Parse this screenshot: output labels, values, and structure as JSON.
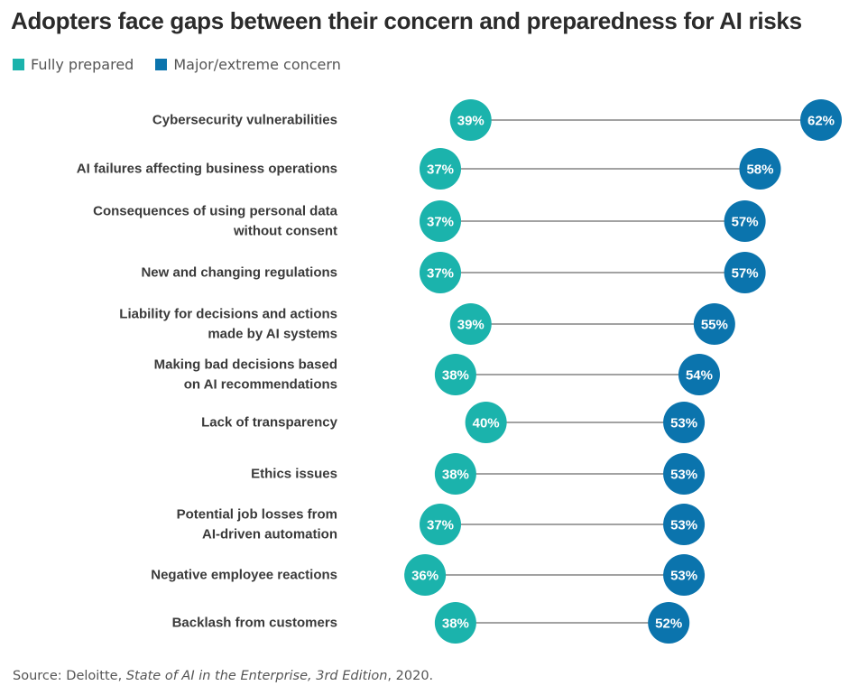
{
  "title": "Adopters face gaps between their concern and preparedness for AI risks",
  "colors": {
    "fully_prepared": "#1bb3ac",
    "major_concern": "#0b74ad",
    "line": "#6b6b6b",
    "label": "#3a3a3a"
  },
  "legend": {
    "fully_prepared": "Fully prepared",
    "major_concern": "Major/extreme concern"
  },
  "source": {
    "prefix": "Source: Deloitte,",
    "publication": "State of AI in the Enterprise, 3rd Edition",
    "suffix": ", 2020."
  },
  "chart_data": {
    "type": "dumbbell",
    "title": "Adopters face gaps between their concern and preparedness for AI risks",
    "unit": "%",
    "series": [
      {
        "name": "Fully prepared",
        "values": [
          39,
          37,
          37,
          37,
          39,
          38,
          40,
          38,
          37,
          36,
          38
        ]
      },
      {
        "name": "Major/extreme concern",
        "values": [
          62,
          58,
          57,
          57,
          55,
          54,
          53,
          53,
          53,
          53,
          52
        ]
      }
    ],
    "categories": [
      [
        "Cybersecurity vulnerabilities"
      ],
      [
        "AI failures affecting business operations"
      ],
      [
        "Consequences of using personal data",
        "without consent"
      ],
      [
        "New and changing regulations"
      ],
      [
        "Liability for decisions and actions",
        "made by AI systems"
      ],
      [
        "Making bad decisions based",
        "on AI recommendations"
      ],
      [
        "Lack of transparency"
      ],
      [
        "Ethics issues"
      ],
      [
        "Potential job losses from",
        "AI-driven automation"
      ],
      [
        "Negative employee reactions"
      ],
      [
        "Backlash from customers"
      ]
    ],
    "legend_position": "top-left",
    "grid": false
  }
}
